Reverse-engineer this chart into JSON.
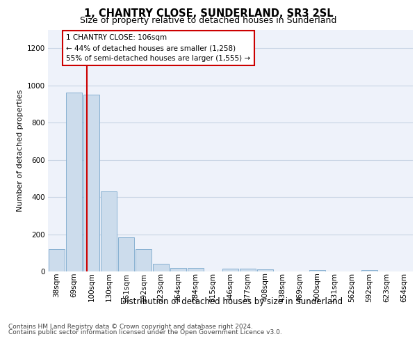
{
  "title": "1, CHANTRY CLOSE, SUNDERLAND, SR3 2SL",
  "subtitle": "Size of property relative to detached houses in Sunderland",
  "xlabel": "Distribution of detached houses by size in Sunderland",
  "ylabel": "Number of detached properties",
  "footer_line1": "Contains HM Land Registry data © Crown copyright and database right 2024.",
  "footer_line2": "Contains public sector information licensed under the Open Government Licence v3.0.",
  "bar_color": "#ccdcec",
  "bar_edge_color": "#7aa8cc",
  "grid_color": "#c8d4e4",
  "property_line_color": "#cc0000",
  "property_sqm": 106,
  "annotation_text_line1": "1 CHANTRY CLOSE: 106sqm",
  "annotation_text_line2": "← 44% of detached houses are smaller (1,258)",
  "annotation_text_line3": "55% of semi-detached houses are larger (1,555) →",
  "categories": [
    "38sqm",
    "69sqm",
    "100sqm",
    "130sqm",
    "161sqm",
    "192sqm",
    "223sqm",
    "254sqm",
    "284sqm",
    "315sqm",
    "346sqm",
    "377sqm",
    "408sqm",
    "438sqm",
    "469sqm",
    "500sqm",
    "531sqm",
    "562sqm",
    "592sqm",
    "623sqm",
    "654sqm"
  ],
  "bin_edges": [
    38,
    69,
    100,
    130,
    161,
    192,
    223,
    254,
    284,
    315,
    346,
    377,
    408,
    438,
    469,
    500,
    531,
    562,
    592,
    623,
    654
  ],
  "values": [
    120,
    960,
    950,
    430,
    185,
    120,
    42,
    20,
    18,
    0,
    15,
    15,
    10,
    0,
    0,
    8,
    0,
    0,
    8,
    0,
    0
  ],
  "ylim": [
    0,
    1300
  ],
  "yticks": [
    0,
    200,
    400,
    600,
    800,
    1000,
    1200
  ],
  "background_color": "#eef2fa",
  "title_fontsize": 10.5,
  "subtitle_fontsize": 9,
  "ylabel_fontsize": 8,
  "xlabel_fontsize": 8.5,
  "tick_fontsize": 7.5,
  "footer_fontsize": 6.5
}
